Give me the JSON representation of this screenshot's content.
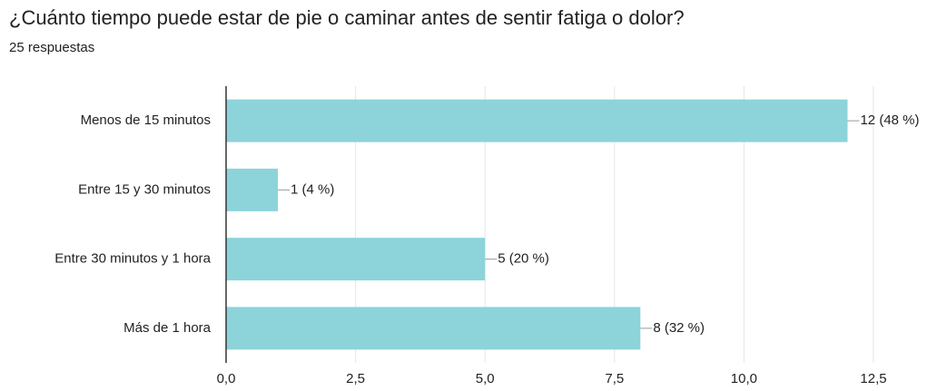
{
  "chart_data": {
    "type": "bar",
    "orientation": "horizontal",
    "title": "¿Cuánto tiempo puede estar de pie o caminar antes de sentir fatiga o dolor?",
    "subtitle": "25 respuestas",
    "categories": [
      "Menos de 15 minutos",
      "Entre 15 y 30 minutos",
      "Entre 30 minutos y 1 hora",
      "Más de 1 hora"
    ],
    "values": [
      12,
      1,
      5,
      8
    ],
    "value_labels": [
      "12 (48 %)",
      "1 (4 %)",
      "5 (20 %)",
      "8 (32 %)"
    ],
    "color": "#8dd3da",
    "xlim": [
      0,
      12.5
    ],
    "xticks": [
      {
        "value": 0,
        "label": "0,0"
      },
      {
        "value": 2.5,
        "label": "2,5"
      },
      {
        "value": 5,
        "label": "5,0"
      },
      {
        "value": 7.5,
        "label": "7,5"
      },
      {
        "value": 10,
        "label": "10,0"
      },
      {
        "value": 12.5,
        "label": "12,5"
      }
    ],
    "grid": true
  }
}
